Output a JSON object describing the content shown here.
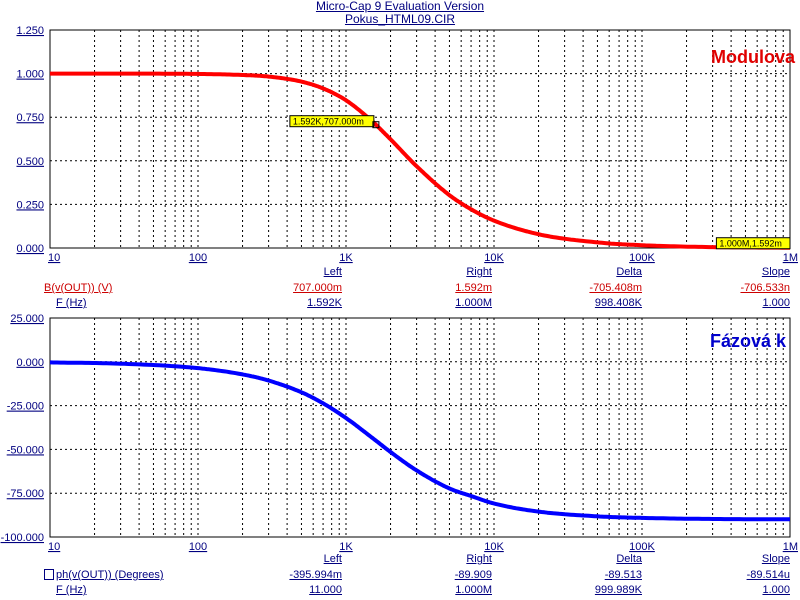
{
  "window": {
    "title": "Micro-Cap 9 Evaluation Version",
    "file": "Pokus_HTML09.CIR"
  },
  "colors": {
    "magnitude": "#ff0000",
    "phase": "#0000ff",
    "axis_text": "#000080",
    "grid": "#000000",
    "tag_fill": "#ffff00"
  },
  "chart_data": [
    {
      "type": "line",
      "title": "Modulova",
      "x_scale": "log",
      "xlim": [
        10,
        1000000
      ],
      "ylim": [
        0,
        1.25
      ],
      "x_tick_labels": [
        "10",
        "100",
        "1K",
        "10K",
        "100K",
        "1M"
      ],
      "y_tick_labels": [
        "1.250",
        "1.000",
        "0.750",
        "0.500",
        "0.250",
        "0.000"
      ],
      "series": [
        {
          "color": "#ff0000",
          "x": [
            10,
            30,
            100,
            200,
            300,
            500,
            700,
            1000,
            1500,
            1592,
            2000,
            3000,
            5000,
            7000,
            10000,
            20000,
            50000,
            100000,
            300000,
            1000000
          ],
          "y": [
            1.0,
            1.0,
            0.998,
            0.992,
            0.983,
            0.954,
            0.915,
            0.847,
            0.728,
            0.707,
            0.623,
            0.469,
            0.303,
            0.222,
            0.157,
            0.079,
            0.032,
            0.016,
            0.005,
            0.0016
          ]
        }
      ],
      "annotations": [
        {
          "x": 1592,
          "y": 0.707,
          "text": "1.592K,707.000m"
        },
        {
          "x": 1000000,
          "y": 0.0016,
          "text": "1.000M,1.592m"
        }
      ],
      "cursor_table": {
        "headers": [
          "Left",
          "Right",
          "Delta",
          "Slope"
        ],
        "rows": [
          {
            "label": "B(v(OUT)) (V)",
            "values": [
              "707.000m",
              "1.592m",
              "-705.408m",
              "-706.533n"
            ]
          },
          {
            "label": "F (Hz)",
            "values": [
              "1.592K",
              "1.000M",
              "998.408K",
              "1.000"
            ]
          }
        ]
      }
    },
    {
      "type": "line",
      "title": "Fázová k",
      "x_scale": "log",
      "xlim": [
        10,
        1000000
      ],
      "ylim": [
        -100,
        25
      ],
      "x_tick_labels": [
        "10",
        "100",
        "1K",
        "10K",
        "100K",
        "1M"
      ],
      "y_tick_labels": [
        "25.000",
        "0.000",
        "-25.000",
        "-50.000",
        "-75.000",
        "-100.000"
      ],
      "series": [
        {
          "color": "#0000ff",
          "x": [
            10,
            30,
            100,
            200,
            300,
            500,
            700,
            1000,
            1592,
            2000,
            3000,
            5000,
            7000,
            10000,
            20000,
            50000,
            100000,
            300000,
            1000000
          ],
          "y": [
            -0.36,
            -1.08,
            -3.6,
            -7.2,
            -10.7,
            -17.4,
            -23.7,
            -32.1,
            -45.0,
            -51.5,
            -62.0,
            -72.3,
            -76.6,
            -80.9,
            -85.5,
            -88.2,
            -89.1,
            -89.7,
            -89.9
          ]
        }
      ],
      "cursor_table": {
        "headers": [
          "Left",
          "Right",
          "Delta",
          "Slope"
        ],
        "rows": [
          {
            "label": "ph(v(OUT)) (Degrees)",
            "values": [
              "-395.994m",
              "-89.909",
              "-89.513",
              "-89.514u"
            ]
          },
          {
            "label": "F (Hz)",
            "values": [
              "11.000",
              "1.000M",
              "999.989K",
              "1.000"
            ]
          }
        ]
      }
    }
  ]
}
